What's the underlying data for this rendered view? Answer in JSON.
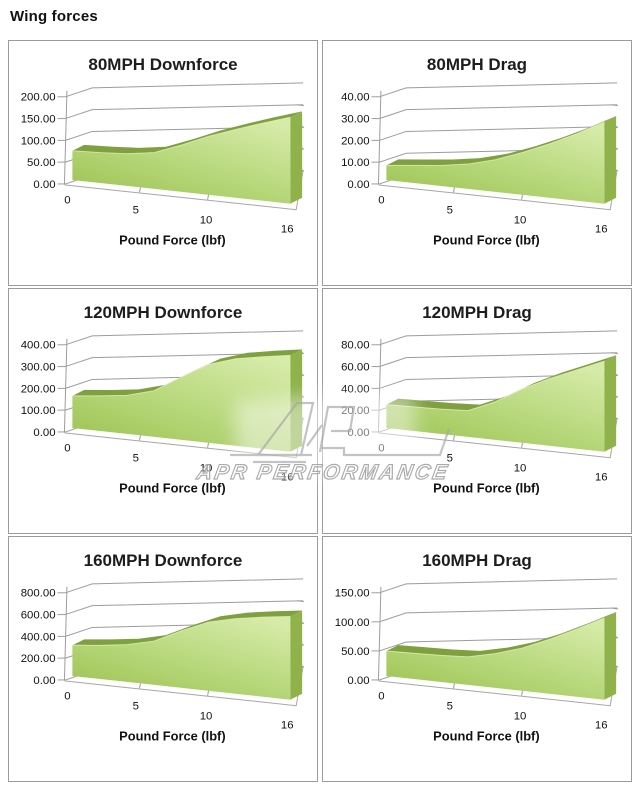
{
  "page": {
    "title": "Wing forces"
  },
  "watermark": {
    "text": "APR PERFORMANCE"
  },
  "colors": {
    "area_light": "#d6eba8",
    "area_mid": "#b5d678",
    "area_deep": "#9cc251",
    "area_top_band": "#7fa03f",
    "area_side": "#8fb24a",
    "edge_highlight": "#dcedb4",
    "grid_line": "#9c9c9c",
    "panel_border": "#9b9b9b",
    "watermark_gray": "#9c9c9c"
  },
  "chart_data": [
    {
      "type": "area",
      "title": "80MPH Downforce",
      "xlabel": "Pound Force (lbf)",
      "x_ticks": [
        "0",
        "5",
        "10",
        "16"
      ],
      "y_tick_labels": [
        "0.00",
        "50.00",
        "100.00",
        "150.00",
        "200.00"
      ],
      "ylim": [
        0,
        200
      ],
      "y_tick_step": 50,
      "x": [
        0,
        2,
        4,
        6,
        8,
        10,
        12,
        14,
        16
      ],
      "values": [
        50,
        52,
        55,
        62,
        80,
        100,
        117,
        133,
        148
      ]
    },
    {
      "type": "area",
      "title": "80MPH Drag",
      "xlabel": "Pound Force (lbf)",
      "x_ticks": [
        "0",
        "5",
        "10",
        "16"
      ],
      "y_tick_labels": [
        "0.00",
        "10.00",
        "20.00",
        "30.00",
        "40.00"
      ],
      "ylim": [
        0,
        40
      ],
      "y_tick_step": 10,
      "x": [
        0,
        2,
        4,
        6,
        8,
        10,
        12,
        14,
        16
      ],
      "values": [
        5,
        6,
        7,
        8.5,
        11,
        14.5,
        18.5,
        23,
        28
      ]
    },
    {
      "type": "area",
      "title": "120MPH Downforce",
      "xlabel": "Pound Force (lbf)",
      "x_ticks": [
        "0",
        "5",
        "10",
        "16"
      ],
      "y_tick_labels": [
        "0.00",
        "100.00",
        "200.00",
        "300.00",
        "400.00"
      ],
      "ylim": [
        0,
        400
      ],
      "y_tick_step": 100,
      "x": [
        0,
        2,
        4,
        6,
        8,
        10,
        12,
        14,
        16
      ],
      "values": [
        110,
        120,
        132,
        158,
        215,
        268,
        298,
        315,
        330
      ]
    },
    {
      "type": "area",
      "title": "120MPH Drag",
      "xlabel": "Pound Force (lbf)",
      "x_ticks": [
        "0",
        "5",
        "10",
        "16"
      ],
      "y_tick_labels": [
        "0.00",
        "20.00",
        "40.00",
        "60.00",
        "80.00"
      ],
      "ylim": [
        0,
        80
      ],
      "y_tick_step": 20,
      "x": [
        0,
        2,
        4,
        6,
        8,
        10,
        12,
        14,
        16
      ],
      "values": [
        16,
        16.5,
        17,
        18,
        26,
        37,
        46,
        54,
        62
      ]
    },
    {
      "type": "area",
      "title": "160MPH Downforce",
      "xlabel": "Pound Force (lbf)",
      "x_ticks": [
        "0",
        "5",
        "10",
        "16"
      ],
      "y_tick_labels": [
        "0.00",
        "200.00",
        "400.00",
        "600.00",
        "800.00"
      ],
      "ylim": [
        0,
        800
      ],
      "y_tick_step": 200,
      "x": [
        0,
        2,
        4,
        6,
        8,
        10,
        12,
        14,
        16
      ],
      "values": [
        210,
        230,
        255,
        300,
        390,
        470,
        515,
        545,
        570
      ]
    },
    {
      "type": "area",
      "title": "160MPH Drag",
      "xlabel": "Pound Force (lbf)",
      "x_ticks": [
        "0",
        "5",
        "10",
        "16"
      ],
      "y_tick_labels": [
        "0.00",
        "50.00",
        "100.00",
        "150.00"
      ],
      "ylim": [
        0,
        150
      ],
      "y_tick_step": 50,
      "x": [
        0,
        2,
        4,
        6,
        8,
        10,
        12,
        14,
        16
      ],
      "values": [
        32,
        33,
        34,
        36,
        44,
        55,
        70,
        87,
        105
      ]
    }
  ]
}
